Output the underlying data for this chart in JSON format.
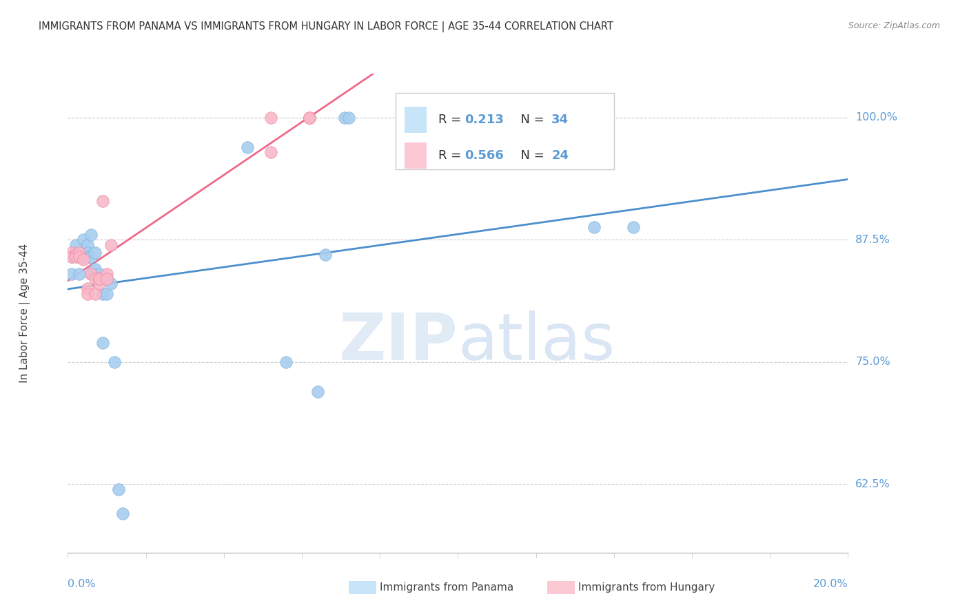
{
  "title": "IMMIGRANTS FROM PANAMA VS IMMIGRANTS FROM HUNGARY IN LABOR FORCE | AGE 35-44 CORRELATION CHART",
  "source": "Source: ZipAtlas.com",
  "ylabel": "In Labor Force | Age 35-44",
  "ytick_labels": [
    "100.0%",
    "87.5%",
    "75.0%",
    "62.5%"
  ],
  "ytick_values": [
    1.0,
    0.875,
    0.75,
    0.625
  ],
  "xlim": [
    0.0,
    0.2
  ],
  "ylim": [
    0.555,
    1.045
  ],
  "panama_color": "#A8CEF0",
  "hungary_color": "#F8B8C8",
  "panama_edge_color": "#7BAED8",
  "hungary_edge_color": "#F080A0",
  "panama_line_color": "#4B8FCC",
  "hungary_line_color": "#F06888",
  "legend_fill_panama": "#C8E4F8",
  "legend_fill_hungary": "#FCC8D4",
  "panama_R": 0.213,
  "panama_N": 34,
  "hungary_R": 0.566,
  "hungary_N": 24,
  "watermark_zip": "ZIP",
  "watermark_atlas": "atlas",
  "panama_scatter_x": [
    0.001,
    0.001,
    0.002,
    0.003,
    0.003,
    0.004,
    0.004,
    0.005,
    0.005,
    0.005,
    0.006,
    0.006,
    0.006,
    0.007,
    0.007,
    0.007,
    0.008,
    0.008,
    0.009,
    0.009,
    0.01,
    0.01,
    0.011,
    0.012,
    0.013,
    0.014,
    0.046,
    0.056,
    0.064,
    0.066,
    0.071,
    0.072,
    0.135,
    0.145
  ],
  "panama_scatter_y": [
    0.84,
    0.858,
    0.87,
    0.84,
    0.858,
    0.858,
    0.875,
    0.87,
    0.862,
    0.857,
    0.84,
    0.858,
    0.88,
    0.84,
    0.845,
    0.862,
    0.84,
    0.835,
    0.77,
    0.82,
    0.835,
    0.82,
    0.83,
    0.75,
    0.62,
    0.595,
    0.97,
    0.75,
    0.72,
    0.86,
    1.0,
    1.0,
    0.888,
    0.888
  ],
  "hungary_scatter_x": [
    0.001,
    0.001,
    0.002,
    0.002,
    0.003,
    0.003,
    0.004,
    0.005,
    0.005,
    0.006,
    0.007,
    0.007,
    0.008,
    0.008,
    0.008,
    0.009,
    0.01,
    0.01,
    0.011,
    0.052,
    0.052,
    0.062,
    0.062,
    0.062
  ],
  "hungary_scatter_y": [
    0.862,
    0.858,
    0.86,
    0.858,
    0.862,
    0.858,
    0.855,
    0.825,
    0.82,
    0.84,
    0.82,
    0.835,
    0.835,
    0.83,
    0.835,
    0.915,
    0.84,
    0.835,
    0.87,
    0.965,
    1.0,
    1.0,
    1.0,
    1.0
  ],
  "background_color": "#ffffff",
  "grid_color": "#CCCCCC",
  "axis_label_color": "#5B9BD5",
  "title_color": "#333333",
  "source_color": "#888888",
  "legend_text_color_label": "#333333",
  "legend_text_color_value": "#5B9BD5"
}
